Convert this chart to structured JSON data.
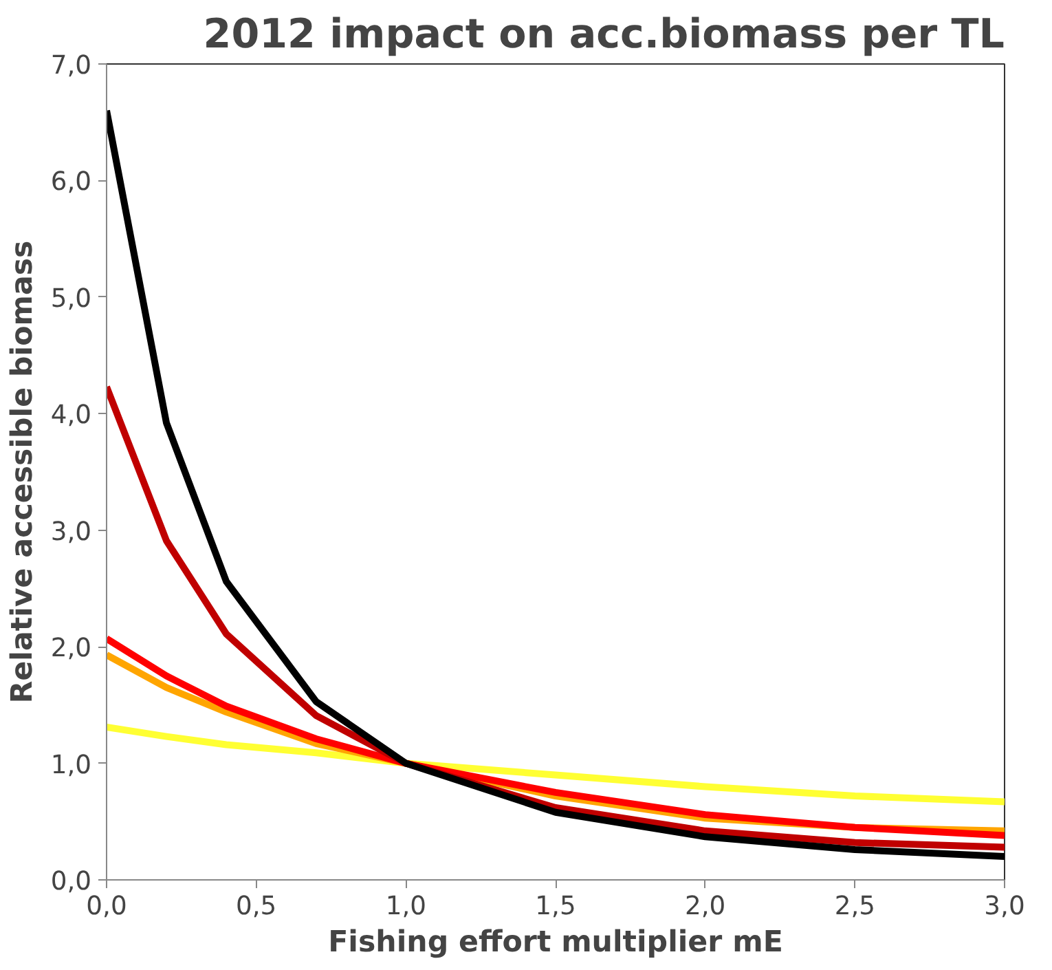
{
  "chart_data": {
    "type": "line",
    "title": "2012 impact on acc.biomass per TL",
    "xlabel": "Fishing effort multiplier mE",
    "ylabel": "Relative accessible biomass",
    "x": [
      0,
      0.2,
      0.4,
      0.7,
      1.0,
      1.5,
      2.0,
      2.5,
      3.0
    ],
    "series": [
      {
        "color": "#ffff33",
        "values": [
          1.31,
          1.23,
          1.16,
          1.09,
          1.0,
          0.9,
          0.8,
          0.72,
          0.67
        ]
      },
      {
        "color": "#ffa500",
        "values": [
          1.93,
          1.65,
          1.44,
          1.17,
          1.0,
          0.72,
          0.53,
          0.45,
          0.42
        ]
      },
      {
        "color": "#ff0000",
        "values": [
          2.07,
          1.75,
          1.49,
          1.21,
          1.0,
          0.75,
          0.56,
          0.45,
          0.38
        ]
      },
      {
        "color": "#c00000",
        "values": [
          4.23,
          2.91,
          2.11,
          1.41,
          1.0,
          0.62,
          0.42,
          0.32,
          0.28
        ]
      },
      {
        "color": "#000000",
        "values": [
          6.6,
          3.92,
          2.56,
          1.53,
          1.0,
          0.58,
          0.37,
          0.26,
          0.2
        ]
      }
    ],
    "xlim": [
      0,
      3
    ],
    "xticks": [
      {
        "value": 0,
        "label": "0,0"
      },
      {
        "value": 0.5,
        "label": "0,5"
      },
      {
        "value": 1.0,
        "label": "1,0"
      },
      {
        "value": 1.5,
        "label": "1,5"
      },
      {
        "value": 2.0,
        "label": "2,0"
      },
      {
        "value": 2.5,
        "label": "2,5"
      },
      {
        "value": 3.0,
        "label": "3,0"
      }
    ],
    "ylim": [
      0,
      7
    ],
    "yticks": [
      {
        "value": 0,
        "label": "0,0"
      },
      {
        "value": 1,
        "label": "1,0"
      },
      {
        "value": 2,
        "label": "2,0"
      },
      {
        "value": 3,
        "label": "3,0"
      },
      {
        "value": 4,
        "label": "4,0"
      },
      {
        "value": 5,
        "label": "5,0"
      },
      {
        "value": 6,
        "label": "6,0"
      },
      {
        "value": 7,
        "label": "7,0"
      }
    ],
    "grid": false,
    "marker": "none",
    "line_style": "solid"
  }
}
